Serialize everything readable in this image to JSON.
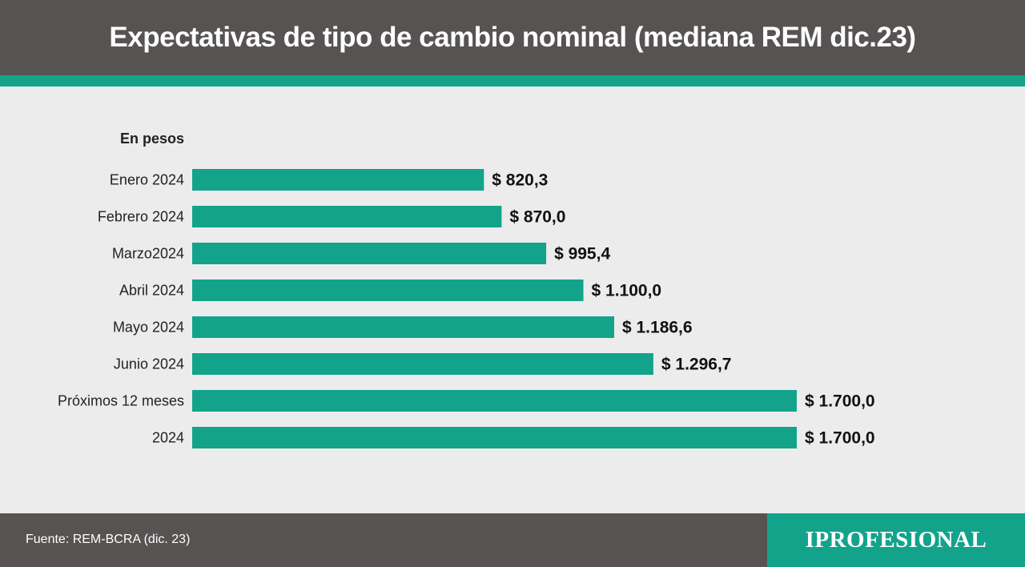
{
  "header": {
    "title": "Expectativas de tipo de cambio nominal (mediana REM dic.23)"
  },
  "colors": {
    "header_bg": "#565352",
    "accent": "#13a38b",
    "bar": "#13a38b",
    "background": "#ececec",
    "text_dark": "#222222"
  },
  "chart_data": {
    "type": "bar",
    "orientation": "horizontal",
    "unit_label": "En pesos",
    "categories": [
      "Enero 2024",
      "Febrero 2024",
      "Marzo2024",
      "Abril 2024",
      "Mayo 2024",
      "Junio 2024",
      "Próximos 12 meses",
      "2024"
    ],
    "values": [
      820.3,
      870.0,
      995.4,
      1100.0,
      1186.6,
      1296.7,
      1700.0,
      1700.0
    ],
    "value_labels": [
      "$ 820,3",
      "$ 870,0",
      "$ 995,4",
      "$ 1.100,0",
      "$ 1.186,6",
      "$ 1.296,7",
      "$ 1.700,0",
      "$ 1.700,0"
    ],
    "xlim": [
      0,
      1700
    ],
    "grid": false,
    "legend": "none"
  },
  "footer": {
    "source": "Fuente: REM-BCRA (dic. 23)",
    "brand": "IPROFESIONAL"
  }
}
